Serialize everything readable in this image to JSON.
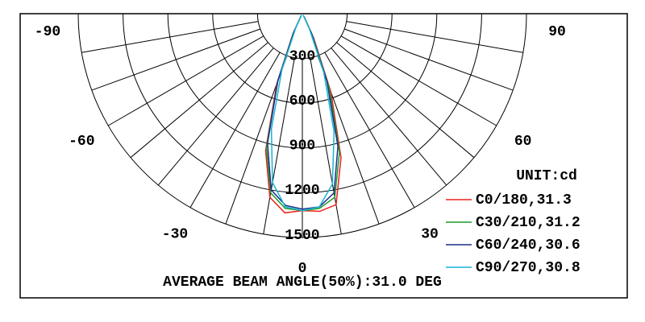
{
  "chart_data": {
    "type": "polar",
    "angles": [
      -30,
      -25,
      -20,
      -15,
      -10,
      -5,
      0,
      5,
      10,
      15,
      20,
      25,
      30
    ],
    "series": [
      {
        "name": "C0/180,31.3",
        "color": "#e8231e",
        "values": [
          20,
          150,
          500,
          950,
          1250,
          1340,
          1320,
          1330,
          1300,
          1000,
          560,
          180,
          25
        ]
      },
      {
        "name": "C30/210,31.2",
        "color": "#1f9a2a",
        "values": [
          18,
          140,
          480,
          930,
          1220,
          1310,
          1320,
          1310,
          1250,
          960,
          520,
          160,
          22
        ]
      },
      {
        "name": "C60/240,30.6",
        "color": "#1a2e8c",
        "values": [
          15,
          130,
          480,
          900,
          1200,
          1290,
          1310,
          1300,
          1220,
          920,
          480,
          140,
          20
        ]
      },
      {
        "name": "C90/270,30.8",
        "color": "#18b4d6",
        "values": [
          10,
          100,
          400,
          800,
          1150,
          1300,
          1320,
          1300,
          1160,
          820,
          420,
          110,
          10
        ]
      }
    ],
    "rlim": [
      0,
      1500
    ],
    "rticks": [
      300,
      600,
      900,
      1200,
      1500
    ],
    "angle_ticks": [
      -90,
      -60,
      -30,
      0,
      30,
      60,
      90
    ],
    "spoke_step": 10,
    "legend_title": "UNIT:cd",
    "annotation": "AVERAGE BEAM ANGLE(50%):31.0 DEG"
  }
}
